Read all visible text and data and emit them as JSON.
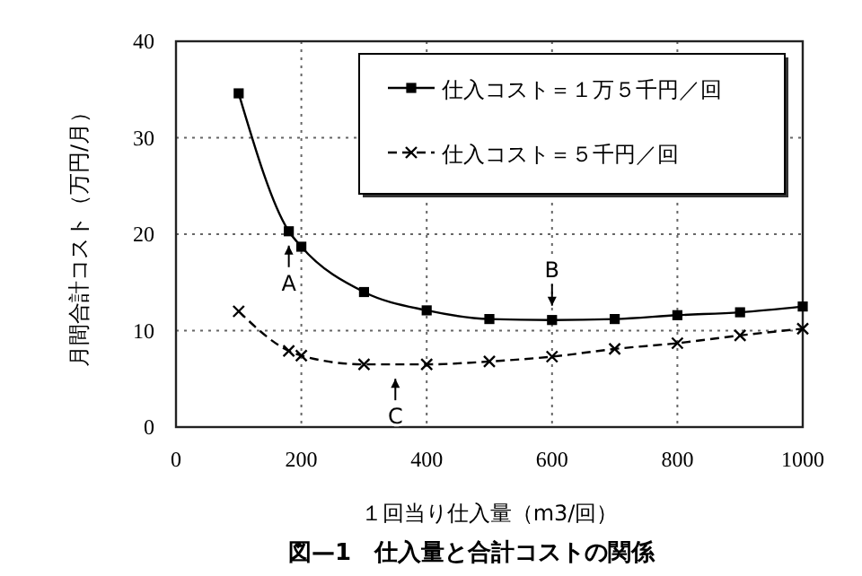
{
  "chart_data": {
    "type": "line",
    "title": "図—1　仕入量と合計コストの関係",
    "xlabel": "１回当り仕入量（m3/回）",
    "ylabel": "月間合計コスト（万円/月）",
    "xlim": [
      0,
      1000
    ],
    "xticks": [
      0,
      200,
      400,
      600,
      800,
      1000
    ],
    "ylim": [
      0,
      40
    ],
    "yticks": [
      0,
      10,
      20,
      30,
      40
    ],
    "grid": true,
    "legend": "top right",
    "series": [
      {
        "name": "仕入コスト＝１万５千円／回",
        "color": "#000000",
        "marker": "square",
        "line_style": "solid",
        "x": [
          100,
          180,
          200,
          300,
          400,
          500,
          600,
          700,
          800,
          900,
          1000
        ],
        "values": [
          34.6,
          20.3,
          18.7,
          14.0,
          12.1,
          11.2,
          11.1,
          11.2,
          11.6,
          11.9,
          12.5
        ]
      },
      {
        "name": "仕入コスト＝５千円／回",
        "color": "#000000",
        "marker": "cross",
        "line_style": "dashed",
        "x": [
          100,
          180,
          200,
          300,
          400,
          500,
          600,
          700,
          800,
          900,
          1000
        ],
        "values": [
          12.0,
          7.9,
          7.4,
          6.5,
          6.5,
          6.8,
          7.3,
          8.1,
          8.7,
          9.5,
          10.2
        ]
      }
    ],
    "annotations": [
      {
        "text": "A",
        "x": 180,
        "y": 20.3
      },
      {
        "text": "B",
        "x": 600,
        "y": 11.1
      },
      {
        "text": "C",
        "x": 350,
        "y": 6.5
      }
    ]
  }
}
